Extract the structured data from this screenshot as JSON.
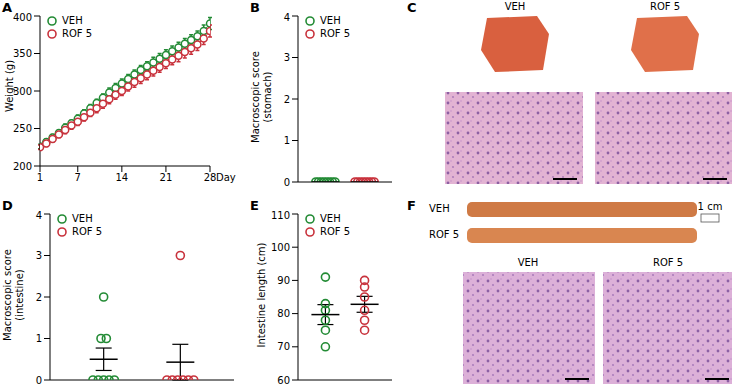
{
  "chart_data": [
    {
      "type": "line",
      "title": "A",
      "ylabel": "Weight (g)",
      "xlabel": "Day",
      "x": [
        1,
        2,
        3,
        4,
        5,
        6,
        7,
        8,
        9,
        10,
        11,
        12,
        13,
        14,
        15,
        16,
        17,
        18,
        19,
        20,
        21,
        22,
        23,
        24,
        25,
        26,
        27,
        28
      ],
      "xlim": [
        1,
        28
      ],
      "xticks": [
        1,
        7,
        14,
        21,
        28
      ],
      "ylim": [
        200,
        400
      ],
      "yticks": [
        200,
        250,
        300,
        350,
        400
      ],
      "legend": "upper left",
      "marker": "circle",
      "series": [
        {
          "name": "VEH",
          "color": "#238b35",
          "values": [
            226,
            232,
            238,
            244,
            251,
            257,
            263,
            270,
            277,
            284,
            291,
            298,
            304,
            310,
            316,
            322,
            328,
            333,
            338,
            343,
            348,
            353,
            358,
            363,
            368,
            373,
            380,
            390
          ],
          "error": [
            3,
            4,
            4,
            4,
            5,
            4,
            5,
            5,
            5,
            5,
            5,
            6,
            6,
            6,
            6,
            6,
            6,
            6,
            7,
            7,
            7,
            7,
            7,
            7,
            7,
            7,
            8,
            8
          ]
        },
        {
          "name": "ROF 5",
          "color": "#c8323c",
          "values": [
            225,
            230,
            236,
            242,
            248,
            254,
            259,
            265,
            271,
            277,
            283,
            289,
            295,
            300,
            306,
            312,
            317,
            322,
            327,
            332,
            337,
            342,
            347,
            352,
            357,
            362,
            370,
            380
          ],
          "error": [
            3,
            4,
            4,
            4,
            5,
            5,
            5,
            5,
            5,
            6,
            6,
            6,
            6,
            6,
            6,
            7,
            7,
            7,
            7,
            7,
            7,
            7,
            8,
            8,
            8,
            8,
            8,
            8
          ]
        }
      ]
    },
    {
      "type": "scatter",
      "title": "B",
      "ylabel": "Macroscopic score (stomach)",
      "ylim": [
        0,
        4
      ],
      "yticks": [
        0,
        1,
        2,
        3,
        4
      ],
      "tick_labels": "y",
      "legend": "upper left",
      "marker": "circle",
      "series": [
        {
          "name": "VEH",
          "color": "#238b35",
          "values": [
            0,
            0,
            0,
            0,
            0,
            0,
            0,
            0
          ],
          "mean": 0,
          "error": 0
        },
        {
          "name": "ROF 5",
          "color": "#c8323c",
          "values": [
            0,
            0,
            0,
            0,
            0,
            0,
            0,
            0
          ],
          "mean": 0,
          "error": 0
        }
      ]
    },
    {
      "type": "image",
      "title": "C",
      "labels": [
        "VEH",
        "ROF 5"
      ]
    },
    {
      "type": "scatter",
      "title": "D",
      "ylabel": "Macroscopic score (intestine)",
      "ylim": [
        0,
        4
      ],
      "yticks": [
        0,
        1,
        2,
        3,
        4
      ],
      "tick_labels": "y",
      "legend": "upper left",
      "marker": "circle",
      "series": [
        {
          "name": "VEH",
          "color": "#238b35",
          "values": [
            2,
            1,
            1,
            0,
            0,
            0,
            0,
            0
          ],
          "mean": 0.5,
          "error": 0.27
        },
        {
          "name": "ROF 5",
          "color": "#c8323c",
          "values": [
            3,
            0,
            0,
            0,
            0,
            0,
            0
          ],
          "mean": 0.43,
          "error": 0.43
        }
      ]
    },
    {
      "type": "scatter",
      "title": "E",
      "ylabel": "Intestine length (cm)",
      "ylim": [
        60,
        110
      ],
      "yticks": [
        60,
        70,
        80,
        90,
        100,
        110
      ],
      "tick_labels": "y",
      "legend": "upper left",
      "marker": "circle",
      "series": [
        {
          "name": "VEH",
          "color": "#238b35",
          "values": [
            91,
            83,
            81,
            78,
            75,
            70
          ],
          "mean": 79.7,
          "error": 3
        },
        {
          "name": "ROF 5",
          "color": "#c8323c",
          "values": [
            90,
            88,
            85,
            81,
            78,
            75
          ],
          "mean": 82.8,
          "error": 2.4
        }
      ]
    },
    {
      "type": "image",
      "title": "F",
      "strip_labels": [
        "VEH",
        "ROF 5"
      ],
      "scale_label": "1 cm",
      "labels": [
        "VEH",
        "ROF 5"
      ]
    }
  ]
}
